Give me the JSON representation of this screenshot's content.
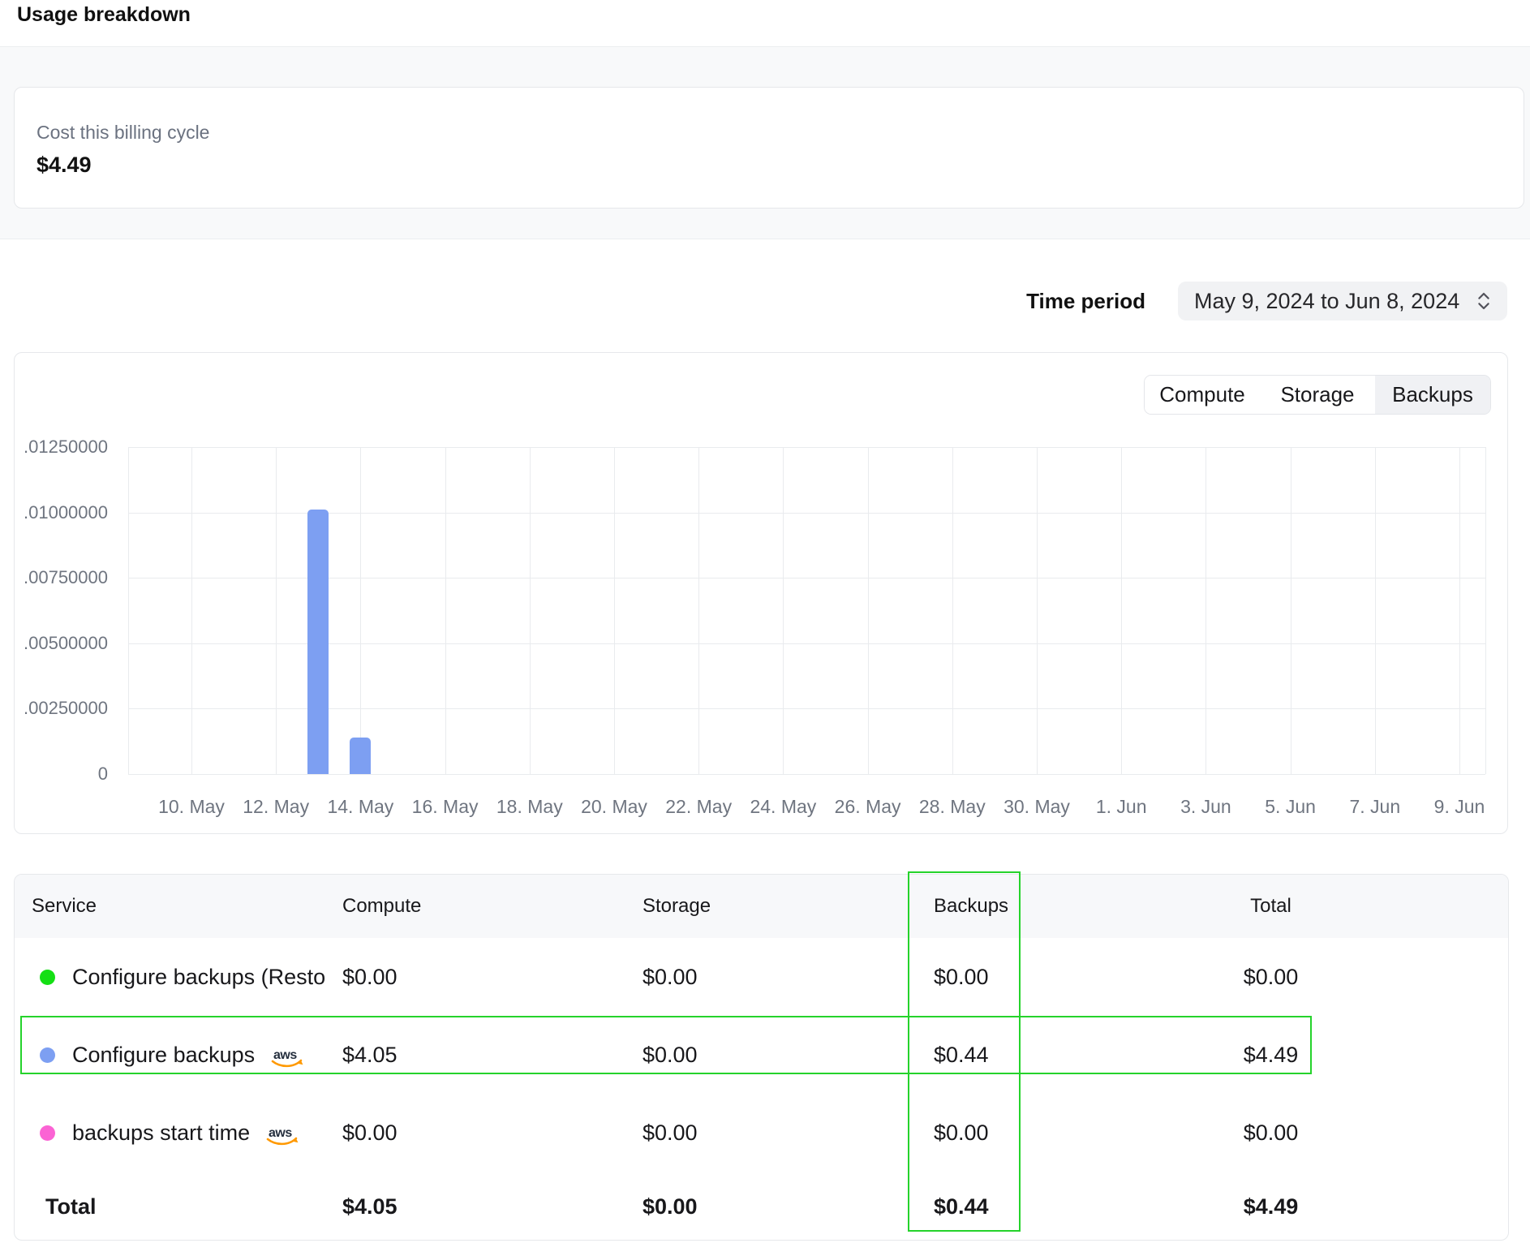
{
  "page": {
    "title": "Usage breakdown"
  },
  "billing": {
    "label": "Cost this billing cycle",
    "amount": "$4.49"
  },
  "time_period": {
    "label": "Time period",
    "value": "May 9, 2024 to Jun 8, 2024"
  },
  "chart": {
    "tabs": [
      {
        "label": "Compute",
        "active": false
      },
      {
        "label": "Storage",
        "active": false
      },
      {
        "label": "Backups",
        "active": true
      }
    ]
  },
  "chart_data": {
    "type": "bar",
    "title": "",
    "xlabel": "",
    "ylabel": "",
    "grid": true,
    "legend": "none",
    "ylim": [
      0,
      0.0125
    ],
    "y_tick_labels": [
      ".01250000",
      ".01000000",
      ".00750000",
      ".00500000",
      ".00250000",
      "0"
    ],
    "y_tick_values": [
      0.0125,
      0.01,
      0.0075,
      0.005,
      0.0025,
      0
    ],
    "x_tick_labels": [
      "10. May",
      "12. May",
      "14. May",
      "16. May",
      "18. May",
      "20. May",
      "22. May",
      "24. May",
      "26. May",
      "28. May",
      "30. May",
      "1. Jun",
      "3. Jun",
      "5. Jun",
      "7. Jun",
      "9. Jun"
    ],
    "bar_color": "#7d9ff2",
    "bars": [
      {
        "date": "13. May",
        "value": 0.0101,
        "tick_pos": 1.5
      },
      {
        "date": "14. May",
        "value": 0.0014,
        "tick_pos": 2.0
      }
    ]
  },
  "table": {
    "headers": [
      "Service",
      "Compute",
      "Storage",
      "Backups",
      "Total"
    ],
    "rows": [
      {
        "dot_color": "#14df14",
        "name": "Configure backups (Resto",
        "aws": false,
        "compute": "$0.00",
        "storage": "$0.00",
        "backups": "$0.00",
        "total": "$0.00",
        "highlighted": false
      },
      {
        "dot_color": "#7d9ff2",
        "name": "Configure backups",
        "aws": true,
        "compute": "$4.05",
        "storage": "$0.00",
        "backups": "$0.44",
        "total": "$4.49",
        "highlighted": true
      },
      {
        "dot_color": "#fb63d4",
        "name": "backups start time",
        "aws": true,
        "compute": "$0.00",
        "storage": "$0.00",
        "backups": "$0.00",
        "total": "$0.00",
        "highlighted": false
      }
    ],
    "total_row": {
      "label": "Total",
      "compute": "$4.05",
      "storage": "$0.00",
      "backups": "$0.44",
      "total": "$4.49"
    }
  },
  "annotations": {
    "highlight_color": "#25d32b"
  },
  "icons": {
    "aws_logo_text": "aws",
    "time_period_chevron": "chevron-up-down-icon"
  }
}
